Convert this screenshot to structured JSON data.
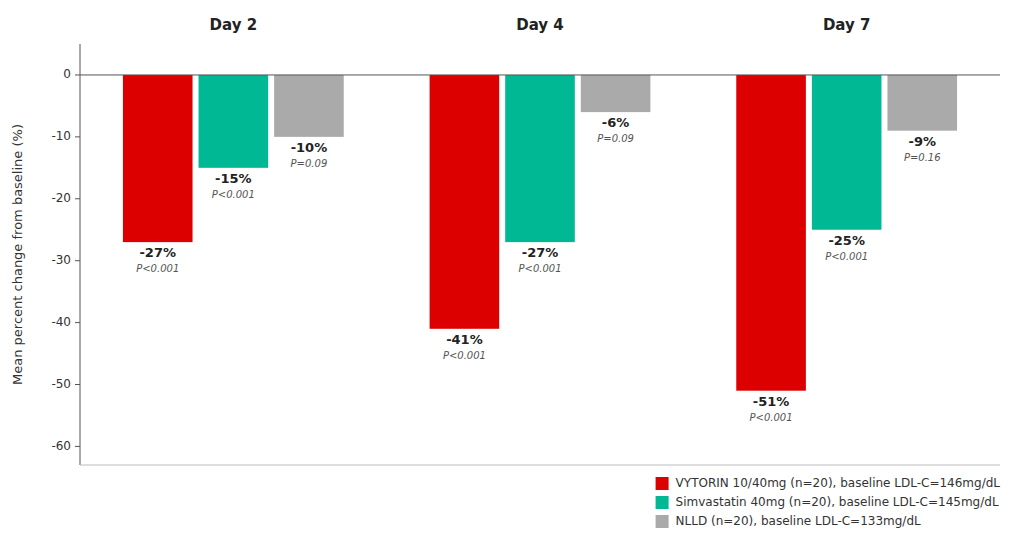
{
  "chart_data": {
    "type": "bar",
    "categories": [
      "Day 2",
      "Day 4",
      "Day 7"
    ],
    "series": [
      {
        "name": "VYTORIN 10/40mg (n=20), baseline LDL-C=146mg/dL",
        "color": "#dd0000",
        "values": [
          -27,
          -41,
          -51
        ],
        "value_labels": [
          "-27%",
          "-41%",
          "-51%"
        ],
        "p_values": [
          "P<0.001",
          "P<0.001",
          "P<0.001"
        ]
      },
      {
        "name": "Simvastatin 40mg (n=20), baseline LDL-C=145mg/dL",
        "color": "#00b894",
        "values": [
          -15,
          -27,
          -25
        ],
        "value_labels": [
          "-15%",
          "-27%",
          "-25%"
        ],
        "p_values": [
          "P<0.001",
          "P<0.001",
          "P<0.001"
        ]
      },
      {
        "name": "NLLD (n=20), baseline LDL-C=133mg/dL",
        "color": "#aaaaaa",
        "values": [
          -10,
          -6,
          -9
        ],
        "value_labels": [
          "-10%",
          "-6%",
          "-9%"
        ],
        "p_values": [
          "P=0.09",
          "P=0.09",
          "P=0.16"
        ]
      }
    ],
    "ylabel": "Mean percent change from baseline (%)",
    "ylim": [
      -63,
      5
    ],
    "yticks": [
      0,
      -10,
      -20,
      -30,
      -40,
      -50,
      -60
    ],
    "data_labels": true,
    "legend": "lower right"
  }
}
